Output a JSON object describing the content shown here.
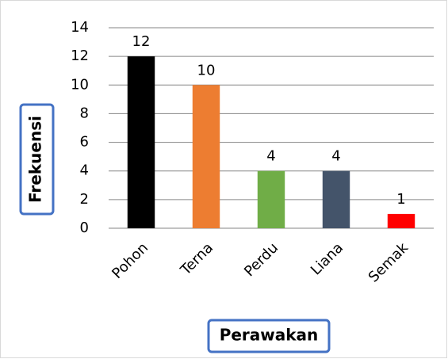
{
  "chart_data": {
    "type": "bar",
    "x_label": "Perawakan",
    "y_label": "Frekuensi",
    "categories": [
      "Pohon",
      "Terna",
      "Perdu",
      "Liana",
      "Semak"
    ],
    "values": [
      12,
      10,
      4,
      4,
      1
    ],
    "colors": [
      "#000000",
      "#ed7d31",
      "#70ad47",
      "#44546a",
      "#ff0000"
    ],
    "ylim": [
      0,
      14
    ],
    "yticks": [
      0,
      2,
      4,
      6,
      8,
      10,
      12,
      14
    ],
    "grid": true
  }
}
